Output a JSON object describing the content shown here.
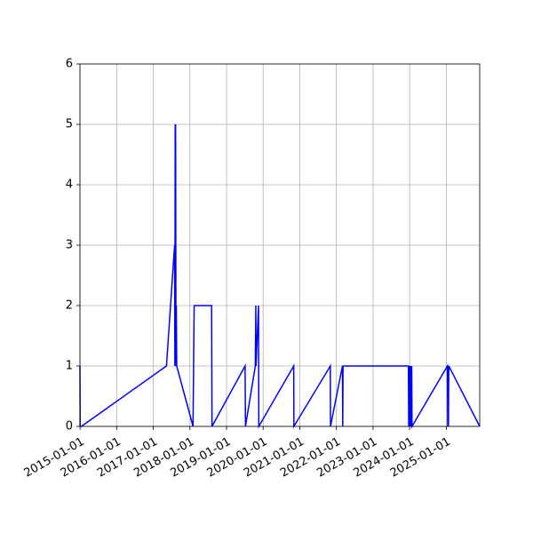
{
  "chart_data": {
    "type": "line",
    "title": "",
    "xlabel": "",
    "ylabel": "",
    "x_axis": "date",
    "xlim": [
      "2014-12-31",
      "2025-11-30"
    ],
    "ylim": [
      0,
      6
    ],
    "grid": true,
    "colors": {
      "line": "#0000ff",
      "grid": "#b0b0b0",
      "axes": "#000000"
    },
    "x_ticks": [
      "2015-01-01",
      "2016-01-01",
      "2017-01-01",
      "2018-01-01",
      "2019-01-01",
      "2020-01-01",
      "2021-01-01",
      "2022-01-01",
      "2023-01-01",
      "2024-01-01",
      "2025-01-01"
    ],
    "y_ticks": [
      "0",
      "1",
      "2",
      "3",
      "4",
      "5",
      "6"
    ],
    "series": [
      {
        "x": [
          "2014-12-31",
          "2015-01-02",
          "2015-01-14",
          "2017-05-12",
          "2017-08-01",
          "2017-08-04",
          "2017-08-07",
          "2017-08-08",
          "2017-08-11",
          "2017-08-15",
          "2017-08-18",
          "2017-08-22",
          "2018-02-01",
          "2018-02-12",
          "2018-08-05",
          "2018-08-09",
          "2019-07-05",
          "2019-07-09",
          "2019-10-15",
          "2019-10-20",
          "2019-10-22",
          "2019-11-16",
          "2019-11-19",
          "2020-11-01",
          "2020-11-03",
          "2021-11-01",
          "2021-11-03",
          "2022-03-02",
          "2022-03-05",
          "2022-03-08",
          "2023-12-20",
          "2023-12-23",
          "2023-12-27",
          "2023-12-30",
          "2024-01-03",
          "2024-01-08",
          "2024-01-12",
          "2024-01-16",
          "2024-01-22",
          "2024-01-25",
          "2025-01-12",
          "2025-01-15",
          "2025-01-18",
          "2025-01-22",
          "2025-01-26",
          "2025-11-30"
        ],
        "values": [
          1,
          0,
          0,
          1,
          3,
          1,
          5,
          1,
          5,
          1,
          2,
          1,
          0,
          2,
          2,
          0,
          1,
          0,
          1,
          2,
          1,
          2,
          0,
          1,
          0,
          1,
          0,
          1,
          0,
          1,
          1,
          0,
          1,
          0,
          1,
          0,
          1,
          0,
          1,
          0,
          1,
          0,
          1,
          0,
          1,
          0
        ]
      }
    ]
  }
}
